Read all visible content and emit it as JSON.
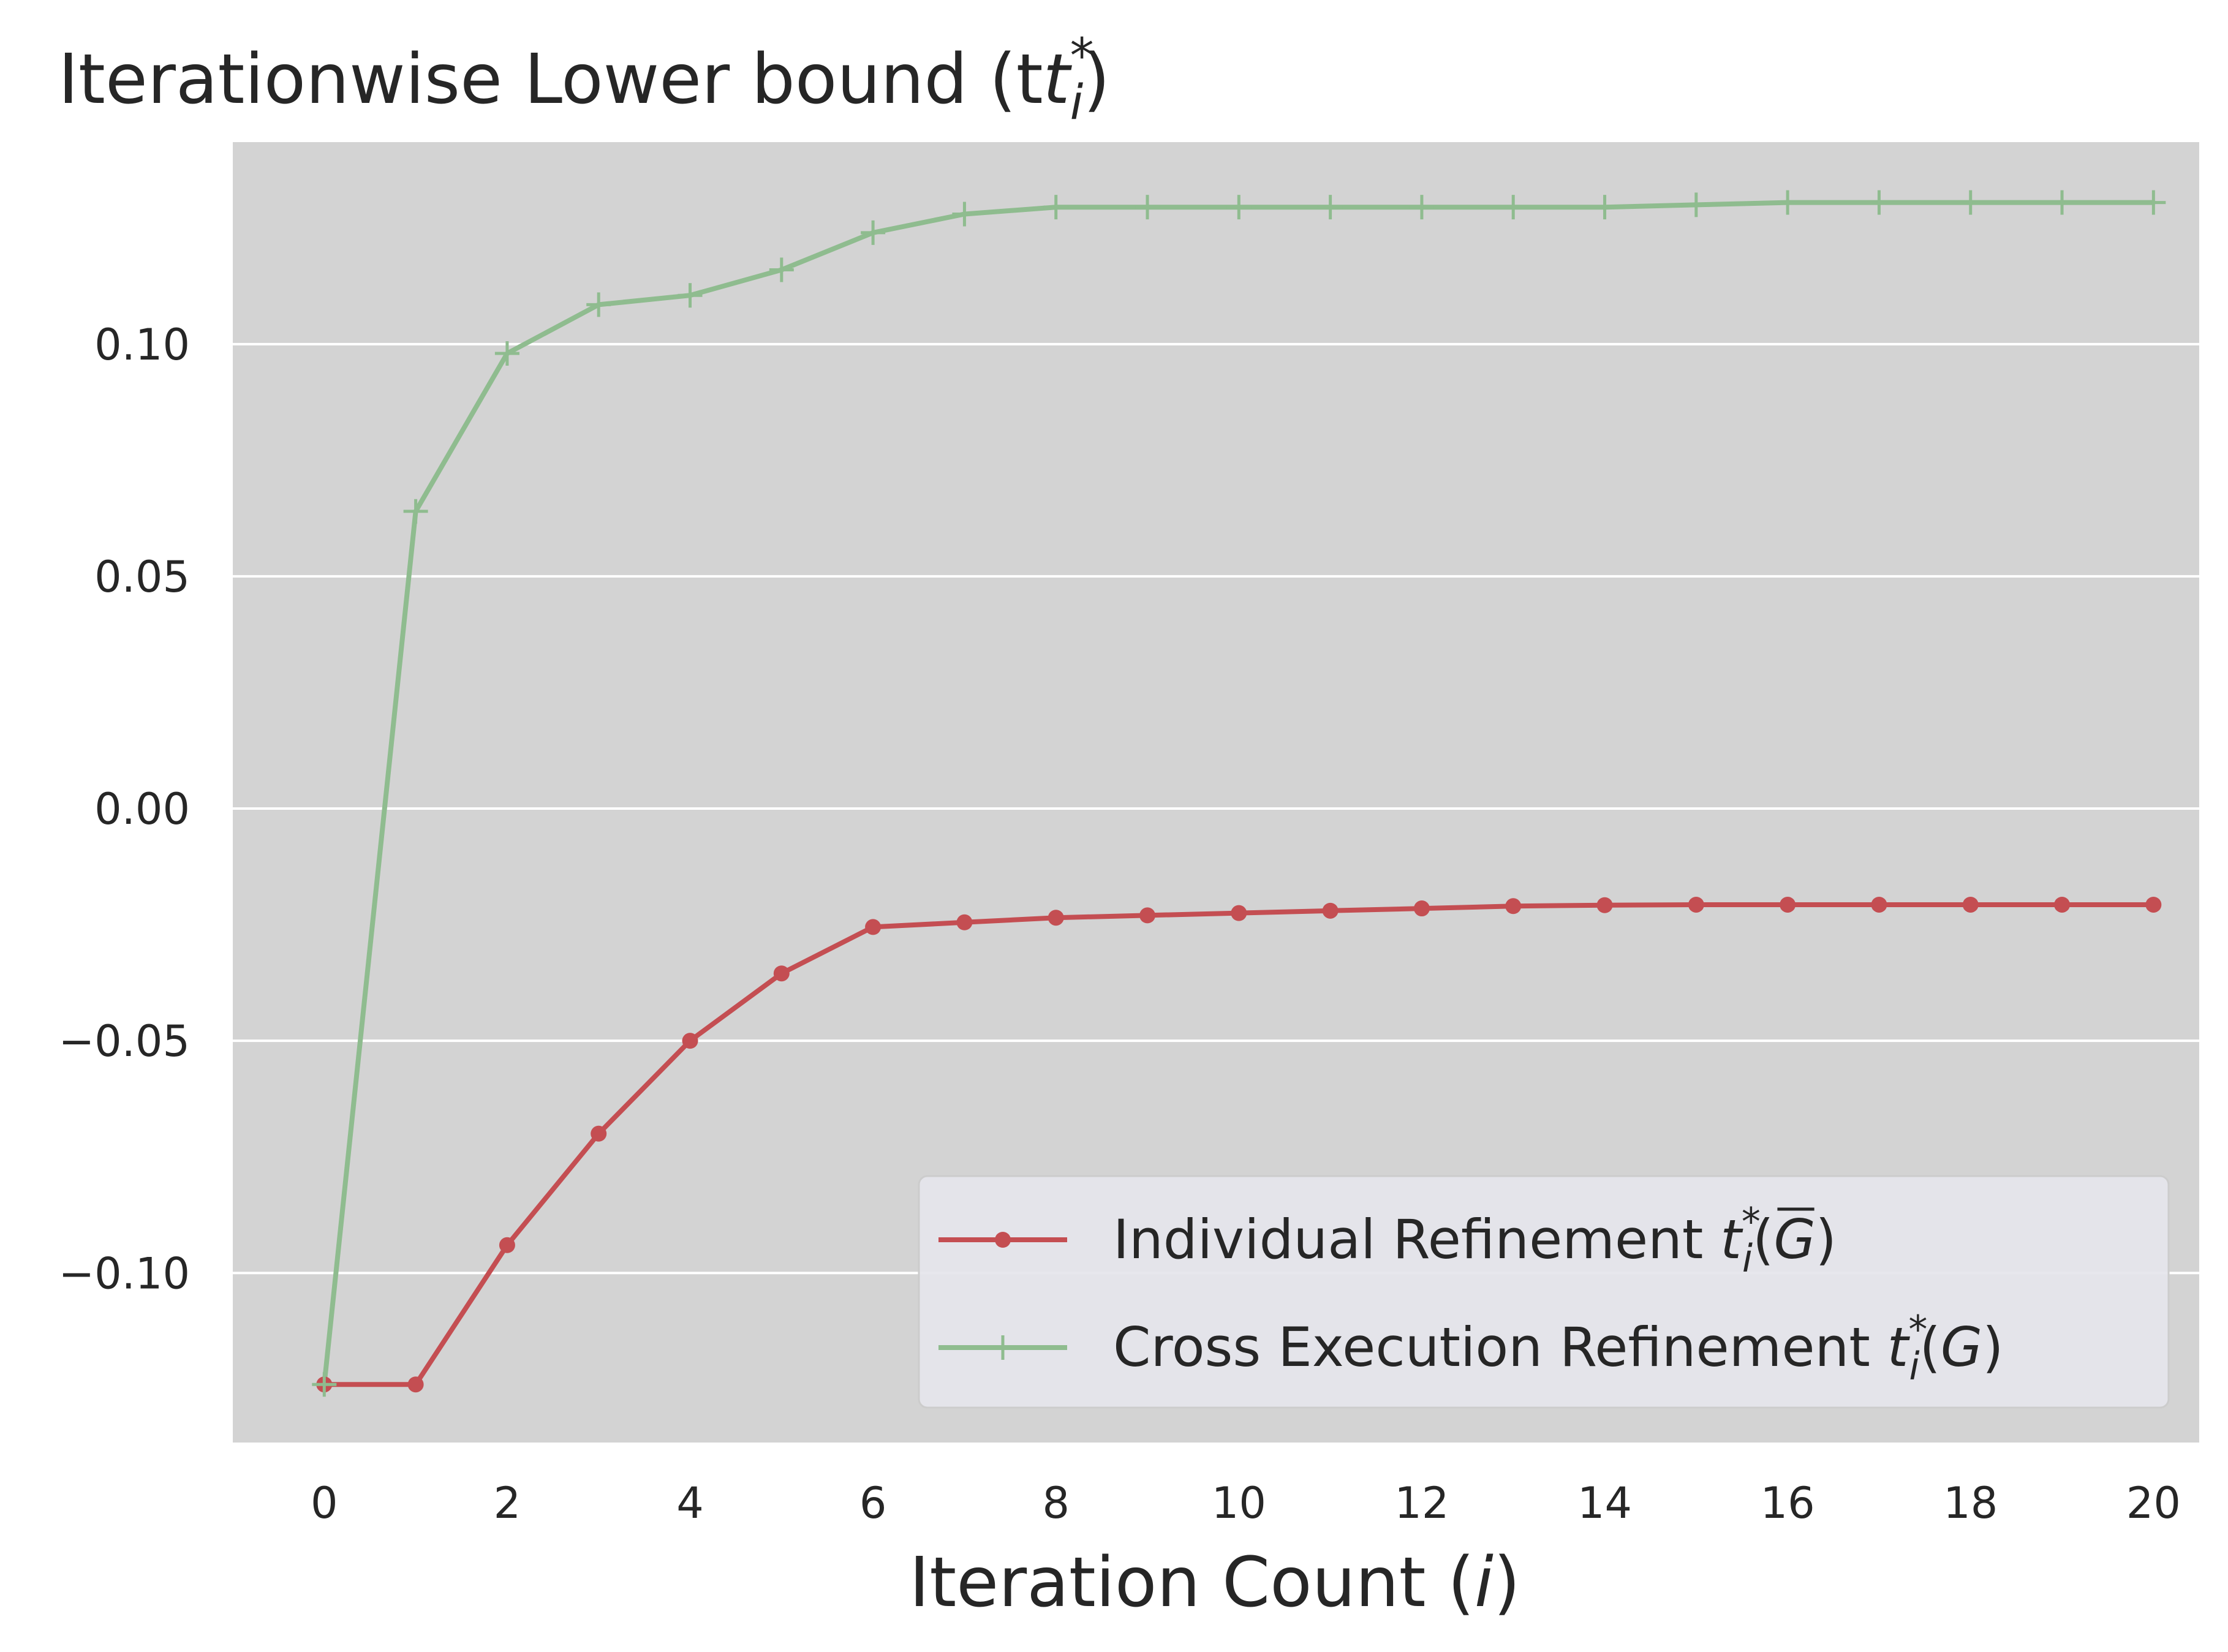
{
  "chart_data": {
    "type": "line",
    "title": "Iterationwise Lower bound (t",
    "title_math": {
      "base": "t",
      "sup": "*",
      "sub": "i",
      "close": ")"
    },
    "xlabel": "Iteration Count (",
    "xlabel_var": "i",
    "xlabel_close": ")",
    "ylabel": "",
    "xlim": [
      -1,
      20.5
    ],
    "ylim": [
      -0.1365,
      0.1435
    ],
    "xticks": [
      0,
      2,
      4,
      6,
      8,
      10,
      12,
      14,
      16,
      18,
      20
    ],
    "yticks": [
      -0.1,
      -0.05,
      0.0,
      0.05,
      0.1
    ],
    "ytick_labels": [
      "−0.10",
      "−0.05",
      "0.00",
      "0.05",
      "0.10"
    ],
    "grid": "horizontal",
    "background": "#d3d3d3",
    "legend_position": "lower-right",
    "x": [
      0,
      1,
      2,
      3,
      4,
      5,
      6,
      7,
      8,
      9,
      10,
      11,
      12,
      13,
      14,
      15,
      16,
      17,
      18,
      19,
      20
    ],
    "series": [
      {
        "name": "Individual Refinement ",
        "name_math": {
          "base": "t",
          "sup": "*",
          "sub": "i",
          "arg": "G",
          "overline": true
        },
        "color": "#c44e52",
        "marker": "circle",
        "values": [
          -0.124,
          -0.124,
          -0.094,
          -0.07,
          -0.05,
          -0.0355,
          -0.0255,
          -0.0245,
          -0.0235,
          -0.023,
          -0.0225,
          -0.022,
          -0.0215,
          -0.021,
          -0.0208,
          -0.0207,
          -0.0207,
          -0.0207,
          -0.0207,
          -0.0207,
          -0.0207
        ]
      },
      {
        "name": "Cross Execution Refinement ",
        "name_math": {
          "base": "t",
          "sup": "*",
          "sub": "i",
          "arg": "G",
          "overline": false
        },
        "color": "#8fbc8f",
        "marker": "plus",
        "values": [
          -0.124,
          0.064,
          0.098,
          0.1085,
          0.1105,
          0.116,
          0.124,
          0.128,
          0.1295,
          0.1295,
          0.1295,
          0.1295,
          0.1295,
          0.1295,
          0.1295,
          0.13,
          0.1305,
          0.1305,
          0.1305,
          0.1305,
          0.1305
        ]
      }
    ]
  }
}
